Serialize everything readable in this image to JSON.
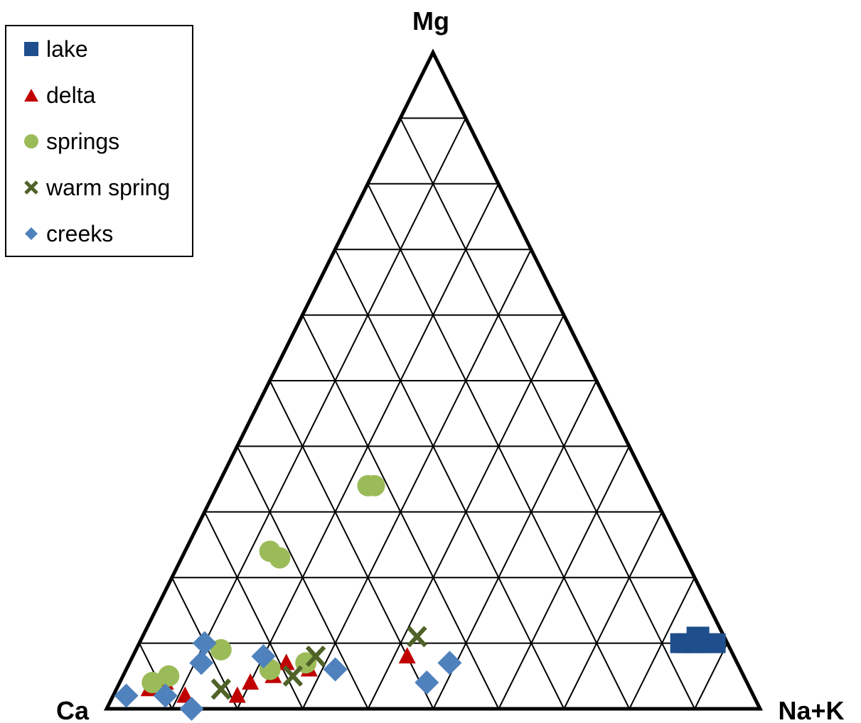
{
  "chart_data": {
    "type": "scatter",
    "subtype": "ternary",
    "vertices": {
      "top": "Mg",
      "left": "Ca",
      "right": "Na+K"
    },
    "grid": true,
    "grid_step_percent": 10,
    "legend_position": "top-left",
    "series": [
      {
        "name": "lake",
        "marker": "square",
        "color": "#1F4E8C",
        "points": [
          {
            "Ca": 7,
            "Mg": 10,
            "NaK": 83
          },
          {
            "Ca": 6,
            "Mg": 10,
            "NaK": 84
          },
          {
            "Ca": 5,
            "Mg": 10,
            "NaK": 85
          },
          {
            "Ca": 4,
            "Mg": 11,
            "NaK": 85
          },
          {
            "Ca": 3,
            "Mg": 10,
            "NaK": 87
          },
          {
            "Ca": 2,
            "Mg": 10,
            "NaK": 88
          }
        ]
      },
      {
        "name": "delta",
        "marker": "triangle",
        "color": "#C00000",
        "points": [
          {
            "Ca": 92,
            "Mg": 3,
            "NaK": 5
          },
          {
            "Ca": 89,
            "Mg": 4,
            "NaK": 7
          },
          {
            "Ca": 87,
            "Mg": 2,
            "NaK": 11
          },
          {
            "Ca": 79,
            "Mg": 2,
            "NaK": 19
          },
          {
            "Ca": 76,
            "Mg": 4,
            "NaK": 20
          },
          {
            "Ca": 72,
            "Mg": 5,
            "NaK": 23
          },
          {
            "Ca": 69,
            "Mg": 7,
            "NaK": 24
          },
          {
            "Ca": 66,
            "Mg": 6,
            "NaK": 28
          },
          {
            "Ca": 50,
            "Mg": 8,
            "NaK": 42
          }
        ]
      },
      {
        "name": "springs",
        "marker": "circle",
        "color": "#9BBB59",
        "points": [
          {
            "Ca": 43,
            "Mg": 34,
            "NaK": 23
          },
          {
            "Ca": 42,
            "Mg": 34,
            "NaK": 24
          },
          {
            "Ca": 63,
            "Mg": 24,
            "NaK": 13
          },
          {
            "Ca": 62,
            "Mg": 23,
            "NaK": 15
          },
          {
            "Ca": 91,
            "Mg": 4,
            "NaK": 5
          },
          {
            "Ca": 88,
            "Mg": 5,
            "NaK": 7
          },
          {
            "Ca": 78,
            "Mg": 9,
            "NaK": 13
          },
          {
            "Ca": 72,
            "Mg": 6,
            "NaK": 22
          },
          {
            "Ca": 66,
            "Mg": 7,
            "NaK": 27
          }
        ]
      },
      {
        "name": "warm spring",
        "marker": "x",
        "color": "#4F6228",
        "points": [
          {
            "Ca": 81,
            "Mg": 3,
            "NaK": 16
          },
          {
            "Ca": 69,
            "Mg": 5,
            "NaK": 26
          },
          {
            "Ca": 64,
            "Mg": 8,
            "NaK": 28
          },
          {
            "Ca": 47,
            "Mg": 11,
            "NaK": 42
          }
        ]
      },
      {
        "name": "creeks",
        "marker": "diamond",
        "color": "#4F81BD",
        "points": [
          {
            "Ca": 96,
            "Mg": 2,
            "NaK": 2
          },
          {
            "Ca": 90,
            "Mg": 2,
            "NaK": 8
          },
          {
            "Ca": 87,
            "Mg": 0,
            "NaK": 13
          },
          {
            "Ca": 82,
            "Mg": 7,
            "NaK": 11
          },
          {
            "Ca": 80,
            "Mg": 10,
            "NaK": 10
          },
          {
            "Ca": 72,
            "Mg": 8,
            "NaK": 20
          },
          {
            "Ca": 62,
            "Mg": 6,
            "NaK": 32
          },
          {
            "Ca": 49,
            "Mg": 4,
            "NaK": 47
          },
          {
            "Ca": 44,
            "Mg": 7,
            "NaK": 49
          }
        ]
      }
    ]
  }
}
